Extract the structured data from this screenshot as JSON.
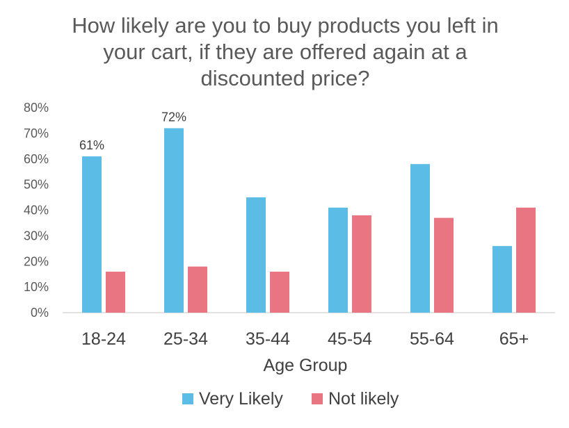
{
  "chart_data": {
    "type": "bar",
    "title_lines": [
      "How likely are you to buy products you left in",
      "your cart, if they are offered again at a",
      "discounted price?"
    ],
    "xlabel": "Age Group",
    "ylabel": "",
    "categories": [
      "18-24",
      "25-34",
      "35-44",
      "45-54",
      "55-64",
      "65+"
    ],
    "series": [
      {
        "name": "Very Likely",
        "color": "#5BBCE6",
        "values": [
          61,
          72,
          45,
          41,
          58,
          26
        ]
      },
      {
        "name": "Not likely",
        "color": "#E97582",
        "values": [
          16,
          18,
          16,
          38,
          37,
          41
        ]
      }
    ],
    "data_labels": [
      {
        "series": 0,
        "index": 0,
        "text": "61%"
      },
      {
        "series": 0,
        "index": 1,
        "text": "72%"
      }
    ],
    "ylim": [
      0,
      80
    ],
    "yticks": [
      "0%",
      "10%",
      "20%",
      "30%",
      "40%",
      "50%",
      "60%",
      "70%",
      "80%"
    ],
    "grid": false,
    "legend_position": "bottom"
  }
}
